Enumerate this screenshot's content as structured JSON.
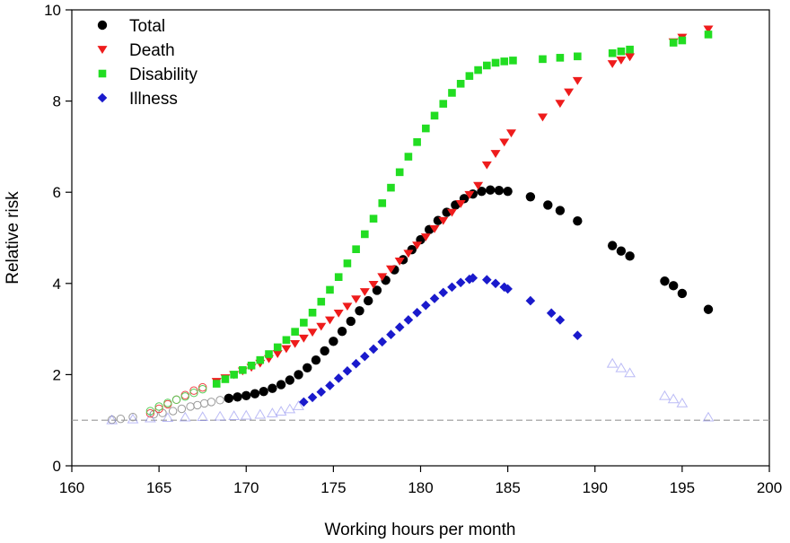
{
  "chart_data": {
    "type": "scatter",
    "title": "",
    "xlabel": "Working hours per month",
    "ylabel": "Relative risk",
    "xlim": [
      160,
      200
    ],
    "ylim": [
      0,
      10
    ],
    "xticks": [
      160,
      165,
      170,
      175,
      180,
      185,
      190,
      195,
      200
    ],
    "yticks": [
      0,
      2,
      4,
      6,
      8,
      10
    ],
    "grid": false,
    "legend_position": "top-left",
    "reference_line": {
      "y": 1,
      "style": "dashed",
      "color": "#999999"
    },
    "series": [
      {
        "name": "Total",
        "marker": "circle",
        "color": "#000000",
        "hollow": [
          [
            162.3,
            1.01
          ],
          [
            162.8,
            1.03
          ],
          [
            163.5,
            1.07
          ],
          [
            164.7,
            1.13
          ],
          [
            165.2,
            1.16
          ],
          [
            165.8,
            1.2
          ],
          [
            166.3,
            1.25
          ],
          [
            166.8,
            1.3
          ],
          [
            167.2,
            1.33
          ],
          [
            167.6,
            1.37
          ],
          [
            168.0,
            1.4
          ],
          [
            168.5,
            1.44
          ]
        ],
        "points": [
          [
            169.0,
            1.48
          ],
          [
            169.5,
            1.51
          ],
          [
            170.0,
            1.54
          ],
          [
            170.5,
            1.58
          ],
          [
            171.0,
            1.63
          ],
          [
            171.5,
            1.7
          ],
          [
            172.0,
            1.78
          ],
          [
            172.5,
            1.88
          ],
          [
            173.0,
            2.0
          ],
          [
            173.5,
            2.15
          ],
          [
            174.0,
            2.32
          ],
          [
            174.5,
            2.52
          ],
          [
            175.0,
            2.73
          ],
          [
            175.5,
            2.95
          ],
          [
            176.0,
            3.17
          ],
          [
            176.5,
            3.4
          ],
          [
            177.0,
            3.62
          ],
          [
            177.5,
            3.85
          ],
          [
            178.0,
            4.07
          ],
          [
            178.5,
            4.3
          ],
          [
            179.0,
            4.52
          ],
          [
            179.5,
            4.74
          ],
          [
            180.0,
            4.96
          ],
          [
            180.5,
            5.18
          ],
          [
            181.0,
            5.38
          ],
          [
            181.5,
            5.56
          ],
          [
            182.0,
            5.72
          ],
          [
            182.5,
            5.86
          ],
          [
            183.0,
            5.96
          ],
          [
            183.5,
            6.02
          ],
          [
            184.0,
            6.05
          ],
          [
            184.5,
            6.04
          ],
          [
            185.0,
            6.02
          ],
          [
            186.3,
            5.9
          ],
          [
            187.3,
            5.72
          ],
          [
            188.0,
            5.6
          ],
          [
            189.0,
            5.37
          ],
          [
            191.0,
            4.83
          ],
          [
            191.5,
            4.71
          ],
          [
            192.0,
            4.6
          ],
          [
            194.0,
            4.05
          ],
          [
            194.5,
            3.95
          ],
          [
            195.0,
            3.78
          ],
          [
            196.5,
            3.43
          ]
        ]
      },
      {
        "name": "Death",
        "marker": "triangle-down",
        "color": "#ee1c1c",
        "hollow": [
          [
            164.5,
            1.15
          ],
          [
            165.0,
            1.25
          ],
          [
            165.5,
            1.35
          ],
          [
            166.0,
            1.45
          ],
          [
            166.5,
            1.55
          ],
          [
            167.0,
            1.65
          ],
          [
            167.5,
            1.72
          ]
        ],
        "points": [
          [
            168.3,
            1.85
          ],
          [
            168.8,
            1.93
          ],
          [
            169.3,
            2.0
          ],
          [
            169.8,
            2.08
          ],
          [
            170.3,
            2.16
          ],
          [
            170.8,
            2.25
          ],
          [
            171.3,
            2.35
          ],
          [
            171.8,
            2.46
          ],
          [
            172.3,
            2.57
          ],
          [
            172.8,
            2.68
          ],
          [
            173.3,
            2.8
          ],
          [
            173.8,
            2.93
          ],
          [
            174.3,
            3.06
          ],
          [
            174.8,
            3.2
          ],
          [
            175.3,
            3.35
          ],
          [
            175.8,
            3.5
          ],
          [
            176.3,
            3.66
          ],
          [
            176.8,
            3.82
          ],
          [
            177.3,
            3.98
          ],
          [
            177.8,
            4.15
          ],
          [
            178.3,
            4.32
          ],
          [
            178.8,
            4.49
          ],
          [
            179.3,
            4.66
          ],
          [
            179.8,
            4.84
          ],
          [
            180.3,
            5.02
          ],
          [
            180.8,
            5.2
          ],
          [
            181.3,
            5.38
          ],
          [
            181.8,
            5.56
          ],
          [
            182.3,
            5.75
          ],
          [
            182.8,
            5.95
          ],
          [
            183.3,
            6.15
          ],
          [
            183.8,
            6.6
          ],
          [
            184.3,
            6.85
          ],
          [
            184.8,
            7.1
          ],
          [
            185.2,
            7.3
          ],
          [
            187.0,
            7.65
          ],
          [
            188.0,
            7.95
          ],
          [
            188.5,
            8.2
          ],
          [
            189.0,
            8.45
          ],
          [
            191.0,
            8.82
          ],
          [
            191.5,
            8.9
          ],
          [
            192.0,
            8.97
          ],
          [
            194.5,
            9.3
          ],
          [
            195.0,
            9.4
          ],
          [
            196.5,
            9.58
          ]
        ]
      },
      {
        "name": "Disability",
        "marker": "square",
        "color": "#22dd22",
        "hollow": [
          [
            164.5,
            1.2
          ],
          [
            165.0,
            1.3
          ],
          [
            165.5,
            1.38
          ],
          [
            166.0,
            1.45
          ],
          [
            166.5,
            1.52
          ],
          [
            167.0,
            1.6
          ],
          [
            167.5,
            1.68
          ]
        ],
        "points": [
          [
            168.3,
            1.8
          ],
          [
            168.8,
            1.9
          ],
          [
            169.3,
            2.0
          ],
          [
            169.8,
            2.1
          ],
          [
            170.3,
            2.2
          ],
          [
            170.8,
            2.32
          ],
          [
            171.3,
            2.45
          ],
          [
            171.8,
            2.6
          ],
          [
            172.3,
            2.76
          ],
          [
            172.8,
            2.94
          ],
          [
            173.3,
            3.14
          ],
          [
            173.8,
            3.36
          ],
          [
            174.3,
            3.6
          ],
          [
            174.8,
            3.86
          ],
          [
            175.3,
            4.14
          ],
          [
            175.8,
            4.44
          ],
          [
            176.3,
            4.75
          ],
          [
            176.8,
            5.08
          ],
          [
            177.3,
            5.42
          ],
          [
            177.8,
            5.76
          ],
          [
            178.3,
            6.1
          ],
          [
            178.8,
            6.44
          ],
          [
            179.3,
            6.78
          ],
          [
            179.8,
            7.1
          ],
          [
            180.3,
            7.4
          ],
          [
            180.8,
            7.68
          ],
          [
            181.3,
            7.94
          ],
          [
            181.8,
            8.18
          ],
          [
            182.3,
            8.38
          ],
          [
            182.8,
            8.55
          ],
          [
            183.3,
            8.68
          ],
          [
            183.8,
            8.78
          ],
          [
            184.3,
            8.84
          ],
          [
            184.8,
            8.87
          ],
          [
            185.3,
            8.89
          ],
          [
            187.0,
            8.92
          ],
          [
            188.0,
            8.95
          ],
          [
            189.0,
            8.98
          ],
          [
            191.0,
            9.05
          ],
          [
            191.5,
            9.09
          ],
          [
            192.0,
            9.13
          ],
          [
            194.5,
            9.28
          ],
          [
            195.0,
            9.33
          ],
          [
            196.5,
            9.46
          ]
        ]
      },
      {
        "name": "Illness",
        "marker": "diamond",
        "color": "#1a1acc",
        "hollow": [
          [
            162.3,
            1.01
          ],
          [
            163.5,
            1.03
          ],
          [
            164.5,
            1.05
          ],
          [
            165.5,
            1.06
          ],
          [
            166.5,
            1.07
          ],
          [
            167.5,
            1.08
          ],
          [
            168.5,
            1.09
          ],
          [
            169.3,
            1.1
          ],
          [
            170.0,
            1.11
          ],
          [
            170.8,
            1.13
          ],
          [
            171.5,
            1.16
          ],
          [
            172.0,
            1.2
          ],
          [
            172.5,
            1.25
          ],
          [
            173.0,
            1.32
          ],
          [
            191.0,
            2.25
          ],
          [
            191.5,
            2.15
          ],
          [
            192.0,
            2.04
          ],
          [
            194.0,
            1.54
          ],
          [
            194.5,
            1.47
          ],
          [
            195.0,
            1.38
          ],
          [
            196.5,
            1.07
          ]
        ],
        "points": [
          [
            173.3,
            1.4
          ],
          [
            173.8,
            1.5
          ],
          [
            174.3,
            1.62
          ],
          [
            174.8,
            1.76
          ],
          [
            175.3,
            1.92
          ],
          [
            175.8,
            2.08
          ],
          [
            176.3,
            2.24
          ],
          [
            176.8,
            2.4
          ],
          [
            177.3,
            2.56
          ],
          [
            177.8,
            2.72
          ],
          [
            178.3,
            2.88
          ],
          [
            178.8,
            3.04
          ],
          [
            179.3,
            3.2
          ],
          [
            179.8,
            3.36
          ],
          [
            180.3,
            3.52
          ],
          [
            180.8,
            3.67
          ],
          [
            181.3,
            3.8
          ],
          [
            181.8,
            3.92
          ],
          [
            182.3,
            4.02
          ],
          [
            182.8,
            4.09
          ],
          [
            183.0,
            4.12
          ],
          [
            183.8,
            4.08
          ],
          [
            184.3,
            4.0
          ],
          [
            184.8,
            3.92
          ],
          [
            185.0,
            3.88
          ],
          [
            186.3,
            3.62
          ],
          [
            187.5,
            3.35
          ],
          [
            188.0,
            3.2
          ],
          [
            189.0,
            2.86
          ]
        ]
      }
    ]
  }
}
